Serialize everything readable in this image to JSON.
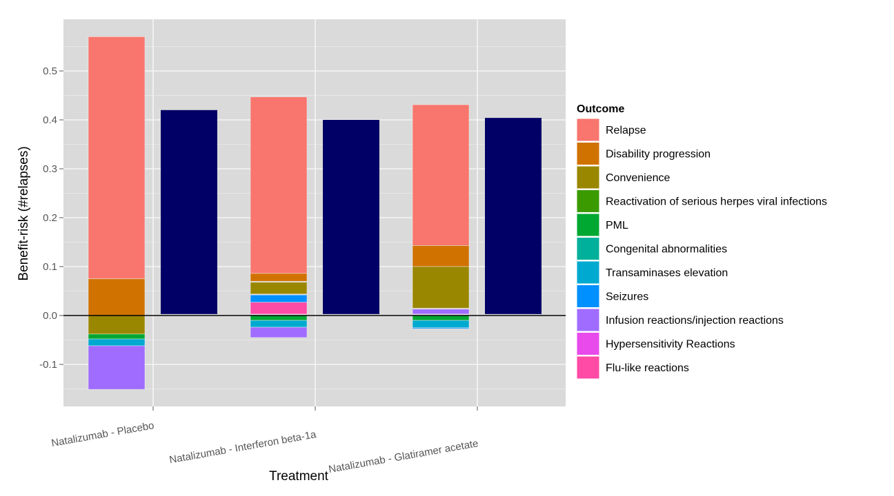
{
  "chart_data": {
    "type": "bar",
    "stacked": true,
    "title": "",
    "xlabel": "Treatment",
    "ylabel": "Benefit-risk (#relapses)",
    "ylim": [
      -0.18,
      0.61
    ],
    "yticks": [
      -0.1,
      0.0,
      0.1,
      0.2,
      0.3,
      0.4,
      0.5
    ],
    "ytick_labels": [
      "-0.1",
      "0.0",
      "0.1",
      "0.2",
      "0.3",
      "0.4",
      "0.5"
    ],
    "grid": true,
    "legend": {
      "title": "Outcome",
      "placement": "right",
      "entries": [
        {
          "label": "Relapse",
          "color": "#F8766D"
        },
        {
          "label": "Disability progression",
          "color": "#D07200"
        },
        {
          "label": "Convenience",
          "color": "#9A8700"
        },
        {
          "label": "Reactivation of serious herpes viral infections",
          "color": "#3B9A00"
        },
        {
          "label": "PML",
          "color": "#00A832"
        },
        {
          "label": "Congenital abnormalities",
          "color": "#00B09A"
        },
        {
          "label": "Transaminases elevation",
          "color": "#00A9D0"
        },
        {
          "label": "Seizures",
          "color": "#0090FF"
        },
        {
          "label": "Infusion reactions/injection reactions",
          "color": "#A06CFF"
        },
        {
          "label": "Hypersensitivity Reactions",
          "color": "#E84AEC"
        },
        {
          "label": "Flu-like reactions",
          "color": "#FF4AA6"
        }
      ]
    },
    "categories": [
      "Natalizumab - Placebo",
      "Natalizumab - Interferon beta-1a",
      "Natalizumab - Glatiramer acetate"
    ],
    "net_bar_color": "#000066",
    "net_values": [
      0.42,
      0.4,
      0.404
    ],
    "stacks": [
      [
        {
          "outcome": "Relapse",
          "ymin": 0.075,
          "ymax": 0.57
        },
        {
          "outcome": "Disability progression",
          "ymin": 0.0,
          "ymax": 0.075
        },
        {
          "outcome": "Convenience",
          "ymin": -0.038,
          "ymax": 0.0
        },
        {
          "outcome": "PML",
          "ymin": -0.048,
          "ymax": -0.038
        },
        {
          "outcome": "Transaminases elevation",
          "ymin": -0.062,
          "ymax": -0.048
        },
        {
          "outcome": "Infusion reactions/injection reactions",
          "ymin": -0.151,
          "ymax": -0.062
        }
      ],
      [
        {
          "outcome": "Relapse",
          "ymin": 0.086,
          "ymax": 0.447
        },
        {
          "outcome": "Disability progression",
          "ymin": 0.07,
          "ymax": 0.086
        },
        {
          "outcome": "Convenience",
          "ymin": 0.044,
          "ymax": 0.068
        },
        {
          "outcome": "Seizures",
          "ymin": 0.027,
          "ymax": 0.042
        },
        {
          "outcome": "Flu-like reactions",
          "ymin": 0.003,
          "ymax": 0.027
        },
        {
          "outcome": "PML",
          "ymin": -0.01,
          "ymax": 0.0
        },
        {
          "outcome": "Transaminases elevation",
          "ymin": -0.024,
          "ymax": -0.01
        },
        {
          "outcome": "Infusion reactions/injection reactions",
          "ymin": -0.045,
          "ymax": -0.024
        }
      ],
      [
        {
          "outcome": "Relapse",
          "ymin": 0.143,
          "ymax": 0.431
        },
        {
          "outcome": "Disability progression",
          "ymin": 0.1,
          "ymax": 0.143
        },
        {
          "outcome": "Convenience",
          "ymin": 0.015,
          "ymax": 0.1
        },
        {
          "outcome": "Infusion reactions/injection reactions",
          "ymin": 0.003,
          "ymax": 0.013
        },
        {
          "outcome": "PML",
          "ymin": -0.01,
          "ymax": 0.0
        },
        {
          "outcome": "Transaminases elevation",
          "ymin": -0.025,
          "ymax": -0.01
        },
        {
          "outcome": "Seizures",
          "ymin": -0.027,
          "ymax": -0.025
        }
      ]
    ]
  }
}
